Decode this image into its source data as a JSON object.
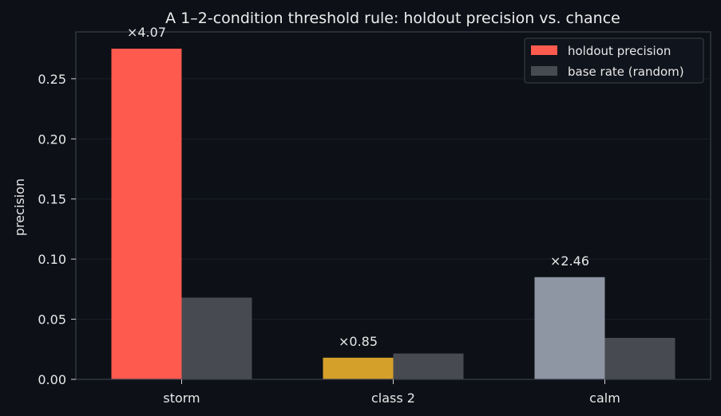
{
  "chart_data": {
    "type": "bar",
    "title": "A 1–2-condition threshold rule: holdout precision vs. chance",
    "xlabel": "",
    "ylabel": "precision",
    "ylim": [
      0,
      0.289
    ],
    "yticks": [
      "0.00",
      "0.05",
      "0.10",
      "0.15",
      "0.20",
      "0.25"
    ],
    "categories": [
      "storm",
      "class 2",
      "calm"
    ],
    "series": [
      {
        "name": "holdout precision",
        "values": [
          0.275,
          0.018,
          0.085
        ],
        "colors": [
          "#ff5a4e",
          "#d4a02a",
          "#8e96a3"
        ]
      },
      {
        "name": "base rate (random)",
        "values": [
          0.068,
          0.0215,
          0.0345
        ],
        "colors": [
          "#474a51",
          "#474a51",
          "#474a51"
        ]
      }
    ],
    "annotations": [
      "×4.07",
      "×0.85",
      "×2.46"
    ],
    "legend_position": "top-right",
    "legend_colors": [
      "#ff5a4e",
      "#474a51"
    ],
    "grid": true,
    "background": "#0d1017",
    "axes_color": "#3a3f4a"
  }
}
